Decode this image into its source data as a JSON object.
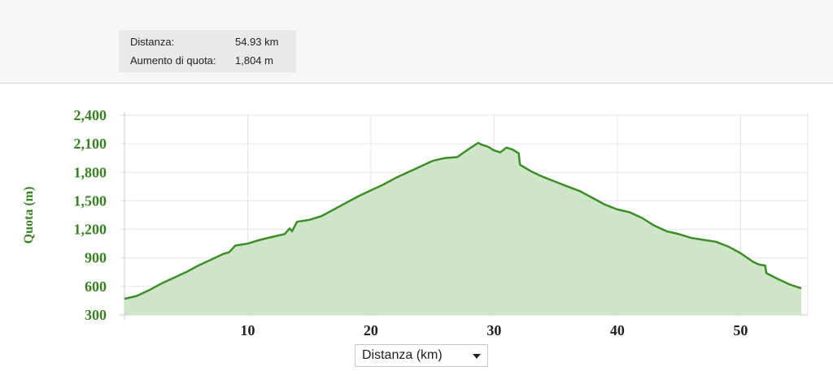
{
  "stats": [
    {
      "label": "Distanza:",
      "value": "54.93 km"
    },
    {
      "label": "Aumento di quota:",
      "value": "1,804 m"
    }
  ],
  "x_selector": {
    "label": "Distanza (km)",
    "options": [
      "Distanza (km)"
    ]
  },
  "chart_data": {
    "type": "area",
    "title": "",
    "xlabel": "",
    "ylabel": "Quota (m)",
    "xlim": [
      0,
      54.93
    ],
    "ylim": [
      300,
      2400
    ],
    "yticks": [
      300,
      600,
      900,
      1200,
      1500,
      1800,
      2100,
      2400
    ],
    "ytick_labels": [
      "300",
      "600",
      "900",
      "1,200",
      "1,500",
      "1,800",
      "2,100",
      "2,400"
    ],
    "xticks": [
      10,
      20,
      30,
      40,
      50
    ],
    "xtick_labels": [
      "10",
      "20",
      "30",
      "40",
      "50"
    ],
    "grid": true,
    "colors": {
      "line": "#3c8c28",
      "fill": "#c9e3c1",
      "axis_text": "#3a7f23",
      "grid": "#e4e4f0"
    },
    "series": [
      {
        "x": [
          0,
          1,
          2,
          3,
          4,
          5,
          6,
          7,
          8,
          8.5,
          9,
          10,
          11,
          12,
          13,
          13.4,
          13.6,
          14,
          15,
          16,
          17,
          18,
          19,
          20,
          21,
          22,
          23,
          24,
          25,
          26,
          27,
          28,
          28.7,
          29,
          29.5,
          30,
          30.5,
          31,
          31.5,
          32,
          32.1,
          33,
          34,
          35,
          36,
          37,
          38,
          39,
          40,
          41,
          42,
          43,
          44,
          45,
          46,
          47,
          48,
          49,
          50,
          51,
          51.5,
          52,
          52.1,
          53,
          54,
          54.93
        ],
        "y": [
          470,
          500,
          560,
          630,
          690,
          750,
          820,
          880,
          940,
          960,
          1030,
          1050,
          1090,
          1120,
          1150,
          1210,
          1180,
          1280,
          1300,
          1340,
          1410,
          1480,
          1550,
          1610,
          1670,
          1740,
          1800,
          1860,
          1920,
          1950,
          1960,
          2050,
          2110,
          2090,
          2070,
          2030,
          2010,
          2060,
          2040,
          2000,
          1880,
          1810,
          1750,
          1700,
          1650,
          1600,
          1530,
          1460,
          1410,
          1380,
          1320,
          1240,
          1180,
          1150,
          1110,
          1090,
          1070,
          1020,
          950,
          860,
          830,
          820,
          740,
          680,
          620,
          580
        ]
      }
    ]
  }
}
